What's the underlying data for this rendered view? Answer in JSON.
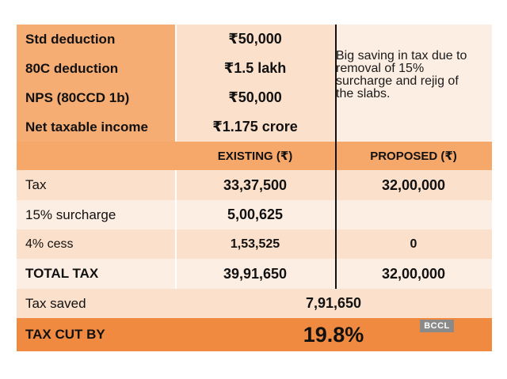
{
  "colors": {
    "orange": "#f4b183",
    "light_orange": "#fbe2cf",
    "header_orange": "#f6a76a",
    "total_orange": "#f08a40",
    "pale": "#fdeee3",
    "white": "#ffffff"
  },
  "deductions": [
    {
      "label": "Std deduction",
      "value": "₹50,000"
    },
    {
      "label": "80C deduction",
      "value": "₹1.5 lakh"
    },
    {
      "label": "NPS (80CCD 1b)",
      "value": "₹50,000"
    },
    {
      "label": "Net taxable income",
      "value": "₹1.175 crore"
    }
  ],
  "note": "Big saving in tax due to removal of 15% surcharge and rejig of the slabs.",
  "columns": {
    "existing": "EXISTING (₹)",
    "proposed": "PROPOSED (₹)"
  },
  "rows": [
    {
      "label": "Tax",
      "existing": "33,37,500",
      "proposed": "32,00,000"
    },
    {
      "label": "15% surcharge",
      "existing": "5,00,625",
      "proposed": ""
    },
    {
      "label": "4% cess",
      "existing": "1,53,525",
      "proposed": "0"
    },
    {
      "label": "TOTAL TAX",
      "existing": "39,91,650",
      "proposed": "32,00,000"
    }
  ],
  "tax_saved": {
    "label": "Tax saved",
    "value": "7,91,650"
  },
  "tax_cut": {
    "label": "TAX CUT BY",
    "value": "19.8%"
  },
  "watermark": "BCCL"
}
